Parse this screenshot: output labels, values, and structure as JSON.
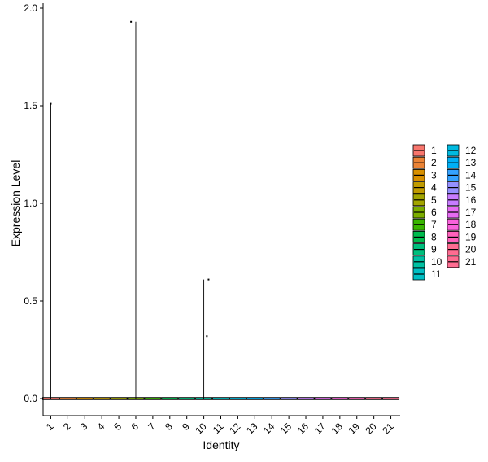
{
  "chart_data": {
    "type": "violin",
    "title": "",
    "xlabel": "Identity",
    "ylabel": "Expression Level",
    "ylim": [
      -0.1,
      2.02
    ],
    "yticks": [
      0.0,
      0.5,
      1.0,
      1.5,
      2.0
    ],
    "ytick_labels": [
      "0.0",
      "0.5",
      "1.0",
      "1.5",
      "2.0"
    ],
    "categories": [
      "1",
      "2",
      "3",
      "4",
      "5",
      "6",
      "7",
      "8",
      "9",
      "10",
      "11",
      "12",
      "13",
      "14",
      "15",
      "16",
      "17",
      "18",
      "19",
      "20",
      "21"
    ],
    "colors": [
      "#F8766D",
      "#EB8335",
      "#D89000",
      "#C09B00",
      "#A3A500",
      "#7CAE00",
      "#39B600",
      "#00BB4E",
      "#00BF7D",
      "#00C1A3",
      "#00BFC4",
      "#00BAE0",
      "#00B0F6",
      "#35A2FF",
      "#9590FF",
      "#C77CFF",
      "#E76BF3",
      "#FA62DB",
      "#FF62BC",
      "#FF6C91",
      "#FF6C91"
    ],
    "spikes": [
      {
        "category": "1",
        "max": 1.51
      },
      {
        "category": "6",
        "max": 1.93
      },
      {
        "category": "10",
        "max": 0.61
      }
    ],
    "points": [
      {
        "category": "1",
        "offset": 0.0,
        "y": 1.51
      },
      {
        "category": "6",
        "offset": -0.28,
        "y": 1.93
      },
      {
        "category": "10",
        "offset": 0.28,
        "y": 0.61
      },
      {
        "category": "10",
        "offset": 0.18,
        "y": 0.32
      }
    ],
    "legend": {
      "position": "right",
      "columns": [
        [
          "1",
          "2",
          "3",
          "4",
          "5",
          "6",
          "7",
          "8",
          "9",
          "10",
          "11"
        ],
        [
          "12",
          "13",
          "14",
          "15",
          "16",
          "17",
          "18",
          "19",
          "20",
          "21"
        ]
      ]
    }
  }
}
